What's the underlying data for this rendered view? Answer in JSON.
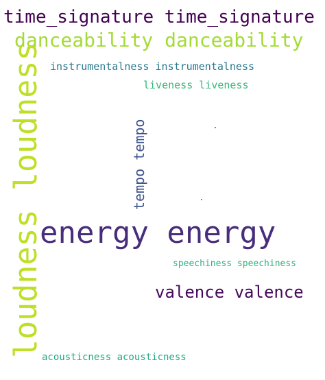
{
  "word_cloud": {
    "words": [
      {
        "key": "time_signature",
        "text": "time_signature time_signature",
        "color": "#440154"
      },
      {
        "key": "danceability",
        "text": "danceability danceability",
        "color": "#a5db36"
      },
      {
        "key": "instrumentalness",
        "text": "instrumentalness instrumentalness",
        "color": "#2a788e"
      },
      {
        "key": "liveness",
        "text": "liveness liveness",
        "color": "#35b779"
      },
      {
        "key": "loudness",
        "text": "loudness loudness",
        "color": "#bddf26"
      },
      {
        "key": "tempo",
        "text": "tempo tempo",
        "color": "#3b528b"
      },
      {
        "key": "energy",
        "text": "energy energy",
        "color": "#472d7b"
      },
      {
        "key": "speechiness",
        "text": "speechiness speechiness",
        "color": "#2db27d"
      },
      {
        "key": "valence",
        "text": "valence valence",
        "color": "#46085c"
      },
      {
        "key": "acousticness",
        "text": "acousticness acousticness",
        "color": "#22a884"
      }
    ],
    "dots": [
      {
        "color": "#2a788e"
      },
      {
        "color": "#2a788e"
      }
    ]
  }
}
